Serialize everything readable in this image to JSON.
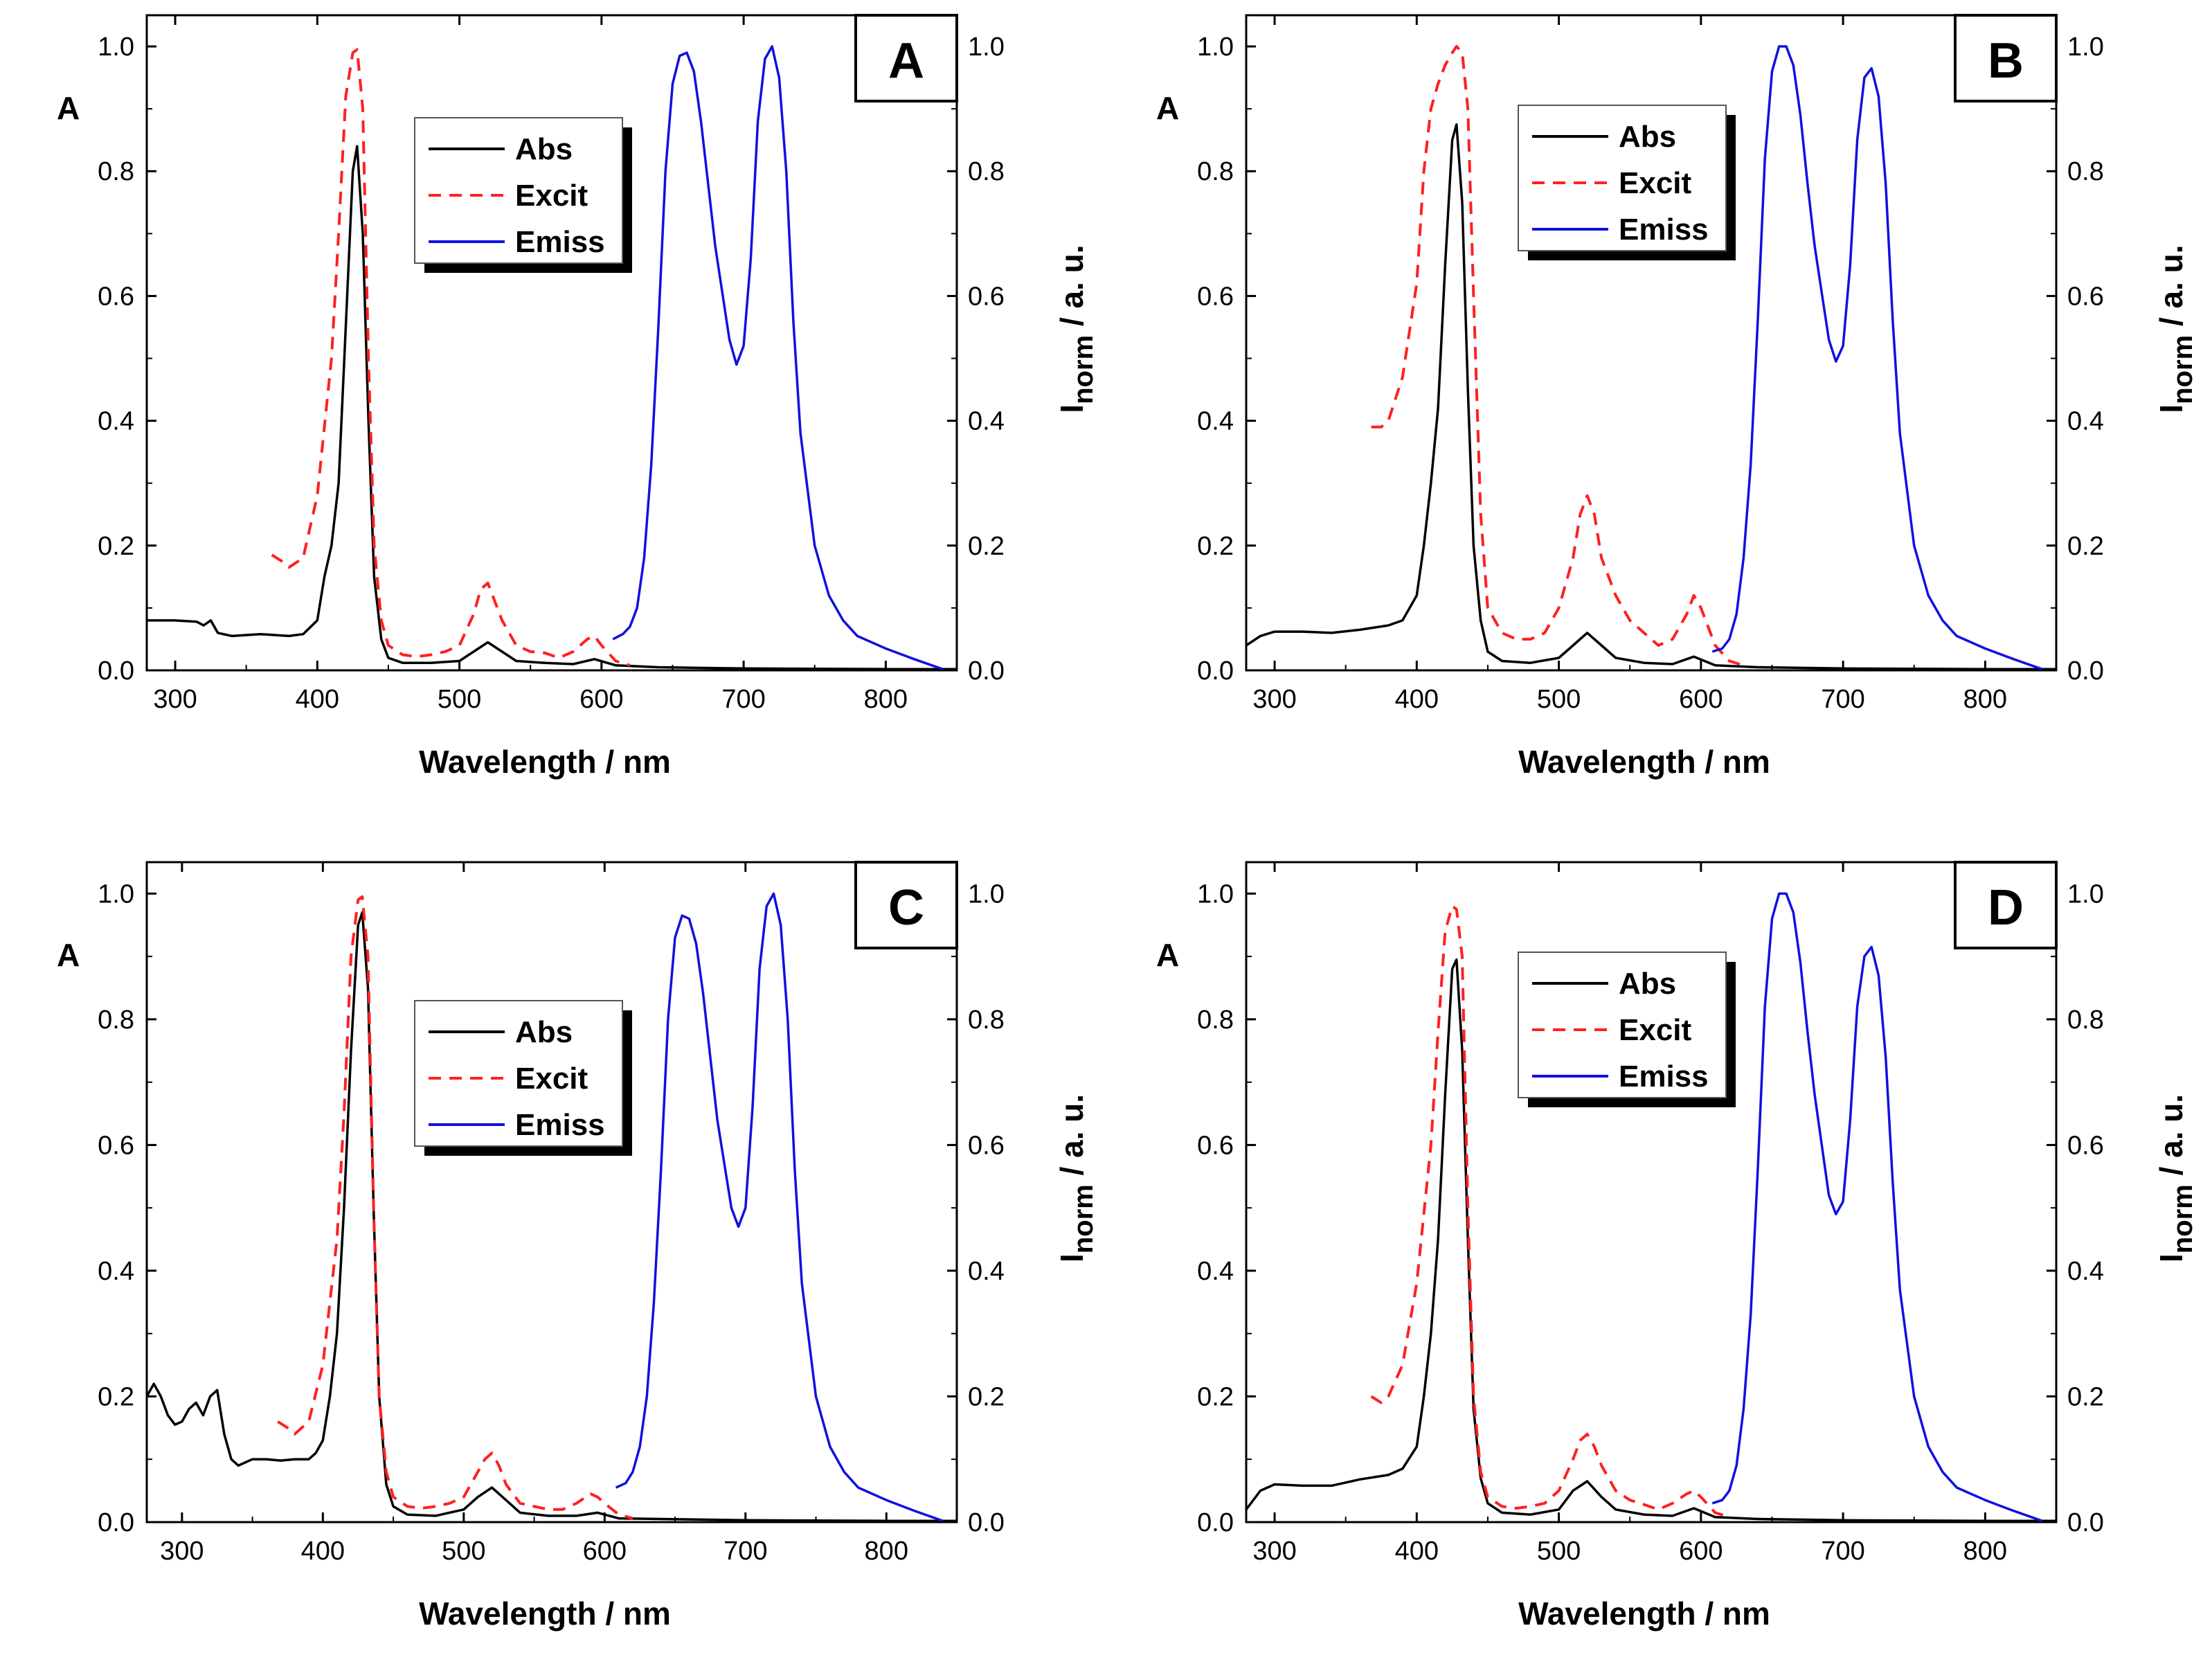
{
  "figure": {
    "legend_labels": {
      "abs": "Abs",
      "excit": "Excit",
      "emiss": "Emiss"
    },
    "series_colors": {
      "abs": "#000000",
      "excit": "#ff2020",
      "emiss": "#1010e0"
    }
  },
  "chart_data": [
    {
      "panel": "A",
      "type": "line",
      "xlabel": "Wavelength / nm",
      "ylabel_left": "A",
      "ylabel_right_main": "I",
      "ylabel_right_sub": "norm",
      "ylabel_right_tail": " / a. u.",
      "xlim": [
        280,
        850
      ],
      "ylim": [
        0,
        1.05
      ],
      "y2lim": [
        0,
        1.05
      ],
      "xticks": [
        "300",
        "400",
        "500",
        "600",
        "700",
        "800"
      ],
      "yticks": [
        "0.0",
        "0.2",
        "0.4",
        "0.6",
        "0.8",
        "1.0"
      ],
      "legend_position": "upper-left-center",
      "series": [
        {
          "name": "Abs",
          "x": [
            280,
            300,
            315,
            320,
            325,
            330,
            340,
            360,
            380,
            390,
            400,
            405,
            410,
            415,
            420,
            425,
            428,
            432,
            436,
            440,
            445,
            450,
            460,
            480,
            500,
            510,
            520,
            530,
            540,
            560,
            580,
            595,
            610,
            640,
            700,
            800,
            850
          ],
          "y": [
            0.08,
            0.08,
            0.078,
            0.072,
            0.08,
            0.06,
            0.055,
            0.058,
            0.055,
            0.058,
            0.08,
            0.15,
            0.2,
            0.3,
            0.55,
            0.8,
            0.84,
            0.7,
            0.4,
            0.15,
            0.05,
            0.02,
            0.012,
            0.012,
            0.015,
            0.03,
            0.045,
            0.03,
            0.015,
            0.012,
            0.01,
            0.018,
            0.008,
            0.005,
            0.003,
            0.002,
            0.002
          ]
        },
        {
          "name": "Excit",
          "x": [
            368,
            375,
            380,
            390,
            400,
            410,
            415,
            420,
            425,
            428,
            432,
            436,
            440,
            445,
            450,
            460,
            470,
            480,
            490,
            500,
            510,
            515,
            520,
            525,
            530,
            540,
            550,
            560,
            570,
            580,
            590,
            595,
            600,
            610,
            620
          ],
          "y": [
            0.185,
            0.175,
            0.165,
            0.18,
            0.28,
            0.5,
            0.7,
            0.92,
            0.99,
            0.995,
            0.9,
            0.5,
            0.2,
            0.08,
            0.04,
            0.025,
            0.022,
            0.025,
            0.03,
            0.04,
            0.09,
            0.13,
            0.14,
            0.11,
            0.08,
            0.04,
            0.03,
            0.028,
            0.02,
            0.03,
            0.05,
            0.055,
            0.04,
            0.015,
            0.008
          ]
        },
        {
          "name": "Emiss",
          "x": [
            608,
            615,
            620,
            625,
            630,
            635,
            640,
            645,
            650,
            655,
            660,
            665,
            670,
            675,
            680,
            690,
            695,
            700,
            705,
            710,
            715,
            720,
            725,
            730,
            735,
            740,
            750,
            760,
            770,
            780,
            800,
            820,
            840
          ],
          "y": [
            0.05,
            0.058,
            0.07,
            0.1,
            0.18,
            0.33,
            0.55,
            0.8,
            0.94,
            0.985,
            0.99,
            0.96,
            0.88,
            0.78,
            0.68,
            0.53,
            0.49,
            0.52,
            0.66,
            0.88,
            0.98,
            1.0,
            0.95,
            0.8,
            0.56,
            0.38,
            0.2,
            0.12,
            0.08,
            0.055,
            0.035,
            0.018,
            0.002
          ]
        }
      ]
    },
    {
      "panel": "B",
      "type": "line",
      "xlabel": "Wavelength / nm",
      "ylabel_left": "A",
      "ylabel_right_main": "I",
      "ylabel_right_sub": "norm",
      "ylabel_right_tail": " / a. u.",
      "xlim": [
        280,
        850
      ],
      "ylim": [
        0,
        1.05
      ],
      "y2lim": [
        0,
        1.05
      ],
      "xticks": [
        "300",
        "400",
        "500",
        "600",
        "700",
        "800"
      ],
      "yticks": [
        "0.0",
        "0.2",
        "0.4",
        "0.6",
        "0.8",
        "1.0"
      ],
      "legend_position": "upper-left-center",
      "series": [
        {
          "name": "Abs",
          "x": [
            280,
            290,
            300,
            320,
            340,
            360,
            380,
            390,
            400,
            405,
            410,
            415,
            420,
            425,
            428,
            432,
            436,
            440,
            445,
            450,
            460,
            480,
            500,
            510,
            520,
            530,
            540,
            560,
            580,
            595,
            610,
            640,
            700,
            800,
            850
          ],
          "y": [
            0.04,
            0.055,
            0.062,
            0.062,
            0.06,
            0.065,
            0.072,
            0.08,
            0.12,
            0.2,
            0.3,
            0.42,
            0.65,
            0.85,
            0.875,
            0.75,
            0.45,
            0.2,
            0.08,
            0.03,
            0.015,
            0.012,
            0.02,
            0.04,
            0.06,
            0.04,
            0.02,
            0.012,
            0.01,
            0.022,
            0.008,
            0.005,
            0.003,
            0.002,
            0.002
          ]
        },
        {
          "name": "Excit",
          "x": [
            368,
            375,
            380,
            390,
            400,
            405,
            410,
            415,
            420,
            425,
            428,
            432,
            436,
            440,
            445,
            450,
            460,
            470,
            480,
            490,
            500,
            510,
            515,
            520,
            525,
            530,
            540,
            550,
            560,
            570,
            580,
            590,
            595,
            600,
            610,
            620,
            630
          ],
          "y": [
            0.39,
            0.39,
            0.4,
            0.47,
            0.62,
            0.8,
            0.9,
            0.94,
            0.97,
            0.99,
            1.0,
            0.99,
            0.9,
            0.6,
            0.25,
            0.1,
            0.06,
            0.05,
            0.05,
            0.06,
            0.1,
            0.18,
            0.25,
            0.28,
            0.25,
            0.18,
            0.12,
            0.08,
            0.06,
            0.04,
            0.05,
            0.09,
            0.12,
            0.1,
            0.04,
            0.015,
            0.008
          ]
        },
        {
          "name": "Emiss",
          "x": [
            608,
            615,
            620,
            625,
            630,
            635,
            640,
            645,
            650,
            655,
            660,
            665,
            670,
            675,
            680,
            690,
            695,
            700,
            705,
            710,
            715,
            720,
            725,
            730,
            735,
            740,
            750,
            760,
            770,
            780,
            800,
            820,
            840
          ],
          "y": [
            0.03,
            0.035,
            0.05,
            0.09,
            0.18,
            0.33,
            0.56,
            0.82,
            0.96,
            1.0,
            1.0,
            0.97,
            0.89,
            0.78,
            0.68,
            0.53,
            0.495,
            0.52,
            0.65,
            0.85,
            0.95,
            0.965,
            0.92,
            0.78,
            0.56,
            0.38,
            0.2,
            0.12,
            0.08,
            0.055,
            0.035,
            0.018,
            0.002
          ]
        }
      ]
    },
    {
      "panel": "C",
      "type": "line",
      "xlabel": "Wavelength / nm",
      "ylabel_left": "A",
      "ylabel_right_main": "I",
      "ylabel_right_sub": "norm",
      "ylabel_right_tail": " / a. u.",
      "xlim": [
        275,
        850
      ],
      "ylim": [
        0,
        1.05
      ],
      "y2lim": [
        0,
        1.05
      ],
      "xticks": [
        "300",
        "400",
        "500",
        "600",
        "700",
        "800"
      ],
      "yticks": [
        "0.0",
        "0.2",
        "0.4",
        "0.6",
        "0.8",
        "1.0"
      ],
      "legend_position": "center-left",
      "series": [
        {
          "name": "Abs",
          "x": [
            275,
            280,
            285,
            290,
            295,
            300,
            305,
            310,
            315,
            320,
            325,
            330,
            335,
            340,
            350,
            360,
            370,
            380,
            390,
            395,
            400,
            405,
            410,
            415,
            420,
            425,
            428,
            432,
            436,
            440,
            445,
            450,
            460,
            480,
            500,
            510,
            520,
            530,
            540,
            560,
            580,
            595,
            610,
            640,
            700,
            800,
            850
          ],
          "y": [
            0.2,
            0.22,
            0.2,
            0.17,
            0.155,
            0.16,
            0.18,
            0.19,
            0.17,
            0.2,
            0.21,
            0.14,
            0.1,
            0.09,
            0.1,
            0.1,
            0.098,
            0.1,
            0.1,
            0.11,
            0.13,
            0.2,
            0.3,
            0.5,
            0.75,
            0.95,
            0.97,
            0.85,
            0.5,
            0.2,
            0.06,
            0.025,
            0.012,
            0.01,
            0.02,
            0.04,
            0.055,
            0.035,
            0.015,
            0.01,
            0.01,
            0.015,
            0.006,
            0.005,
            0.003,
            0.002,
            0.002
          ]
        },
        {
          "name": "Excit",
          "x": [
            368,
            375,
            380,
            390,
            400,
            410,
            415,
            420,
            425,
            428,
            432,
            436,
            440,
            445,
            450,
            460,
            470,
            480,
            490,
            500,
            510,
            515,
            520,
            525,
            530,
            540,
            550,
            560,
            570,
            580,
            590,
            595,
            600,
            610,
            620
          ],
          "y": [
            0.16,
            0.15,
            0.14,
            0.16,
            0.25,
            0.45,
            0.65,
            0.9,
            0.99,
            0.995,
            0.9,
            0.5,
            0.2,
            0.08,
            0.04,
            0.025,
            0.022,
            0.025,
            0.03,
            0.04,
            0.08,
            0.1,
            0.11,
            0.09,
            0.06,
            0.03,
            0.025,
            0.02,
            0.02,
            0.03,
            0.045,
            0.04,
            0.03,
            0.012,
            0.006
          ]
        },
        {
          "name": "Emiss",
          "x": [
            608,
            615,
            620,
            625,
            630,
            635,
            640,
            645,
            650,
            655,
            660,
            665,
            670,
            675,
            680,
            690,
            695,
            700,
            705,
            710,
            715,
            720,
            725,
            730,
            735,
            740,
            750,
            760,
            770,
            780,
            800,
            820,
            840
          ],
          "y": [
            0.055,
            0.062,
            0.08,
            0.12,
            0.2,
            0.35,
            0.56,
            0.8,
            0.93,
            0.965,
            0.96,
            0.92,
            0.84,
            0.74,
            0.64,
            0.5,
            0.47,
            0.5,
            0.66,
            0.88,
            0.98,
            1.0,
            0.95,
            0.8,
            0.56,
            0.38,
            0.2,
            0.12,
            0.08,
            0.055,
            0.035,
            0.018,
            0.002
          ]
        }
      ]
    },
    {
      "panel": "D",
      "type": "line",
      "xlabel": "Wavelength / nm",
      "ylabel_left": "A",
      "ylabel_right_main": "I",
      "ylabel_right_sub": "norm",
      "ylabel_right_tail": " / a. u.",
      "xlim": [
        280,
        850
      ],
      "ylim": [
        0,
        1.05
      ],
      "y2lim": [
        0,
        1.05
      ],
      "xticks": [
        "300",
        "400",
        "500",
        "600",
        "700",
        "800"
      ],
      "yticks": [
        "0.0",
        "0.2",
        "0.4",
        "0.6",
        "0.8",
        "1.0"
      ],
      "legend_position": "upper-left-center",
      "series": [
        {
          "name": "Abs",
          "x": [
            280,
            290,
            300,
            320,
            340,
            360,
            380,
            390,
            400,
            405,
            410,
            415,
            420,
            425,
            428,
            432,
            436,
            440,
            445,
            450,
            460,
            480,
            500,
            510,
            520,
            530,
            540,
            560,
            580,
            595,
            610,
            640,
            700,
            800,
            850
          ],
          "y": [
            0.02,
            0.05,
            0.06,
            0.058,
            0.058,
            0.068,
            0.075,
            0.085,
            0.12,
            0.2,
            0.3,
            0.45,
            0.68,
            0.88,
            0.895,
            0.75,
            0.45,
            0.18,
            0.07,
            0.03,
            0.015,
            0.012,
            0.02,
            0.05,
            0.065,
            0.04,
            0.02,
            0.012,
            0.01,
            0.022,
            0.008,
            0.005,
            0.003,
            0.002,
            0.002
          ]
        },
        {
          "name": "Excit",
          "x": [
            368,
            375,
            380,
            390,
            400,
            410,
            415,
            420,
            425,
            428,
            432,
            436,
            440,
            445,
            450,
            460,
            470,
            480,
            490,
            500,
            510,
            515,
            520,
            525,
            530,
            540,
            550,
            560,
            570,
            580,
            590,
            595,
            600,
            610,
            620
          ],
          "y": [
            0.2,
            0.19,
            0.2,
            0.25,
            0.38,
            0.6,
            0.78,
            0.94,
            0.98,
            0.975,
            0.9,
            0.5,
            0.2,
            0.08,
            0.04,
            0.025,
            0.022,
            0.025,
            0.03,
            0.05,
            0.1,
            0.13,
            0.14,
            0.12,
            0.09,
            0.05,
            0.035,
            0.028,
            0.02,
            0.03,
            0.045,
            0.05,
            0.04,
            0.015,
            0.008
          ]
        },
        {
          "name": "Emiss",
          "x": [
            608,
            615,
            620,
            625,
            630,
            635,
            640,
            645,
            650,
            655,
            660,
            665,
            670,
            675,
            680,
            690,
            695,
            700,
            705,
            710,
            715,
            720,
            725,
            730,
            735,
            740,
            750,
            760,
            770,
            780,
            800,
            820,
            840
          ],
          "y": [
            0.03,
            0.035,
            0.05,
            0.09,
            0.18,
            0.33,
            0.56,
            0.82,
            0.96,
            1.0,
            1.0,
            0.97,
            0.89,
            0.78,
            0.68,
            0.52,
            0.49,
            0.51,
            0.64,
            0.82,
            0.9,
            0.915,
            0.87,
            0.74,
            0.54,
            0.37,
            0.2,
            0.12,
            0.08,
            0.055,
            0.035,
            0.018,
            0.002
          ]
        }
      ]
    }
  ]
}
